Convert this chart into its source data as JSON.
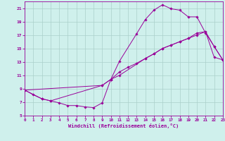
{
  "xlabel": "Windchill (Refroidissement éolien,°C)",
  "background_color": "#cff0ec",
  "grid_color": "#aacfca",
  "line_color": "#990099",
  "xlim": [
    0,
    23
  ],
  "ylim": [
    5,
    22
  ],
  "xticks": [
    0,
    1,
    2,
    3,
    4,
    5,
    6,
    7,
    8,
    9,
    10,
    11,
    12,
    13,
    14,
    15,
    16,
    17,
    18,
    19,
    20,
    21,
    22,
    23
  ],
  "yticks": [
    5,
    7,
    9,
    11,
    13,
    15,
    17,
    19,
    21
  ],
  "series1_x": [
    0,
    1,
    2,
    3,
    4,
    5,
    6,
    7,
    8,
    9,
    10,
    11,
    13,
    14,
    15,
    16,
    17,
    18,
    19,
    20,
    21,
    22,
    23
  ],
  "series1_y": [
    8.8,
    8.1,
    7.5,
    7.2,
    6.9,
    6.5,
    6.5,
    6.3,
    6.2,
    6.9,
    10.4,
    13.1,
    17.2,
    19.3,
    20.7,
    21.5,
    20.9,
    20.7,
    19.7,
    19.7,
    17.3,
    15.3,
    13.3
  ],
  "series2_x": [
    0,
    2,
    3,
    9,
    10,
    11,
    12,
    13,
    14,
    15,
    16,
    17,
    18,
    19,
    20,
    21,
    22,
    23
  ],
  "series2_y": [
    8.8,
    7.5,
    7.2,
    9.5,
    10.4,
    11.5,
    12.2,
    12.8,
    13.5,
    14.2,
    15.0,
    15.5,
    16.0,
    16.5,
    17.0,
    17.5,
    13.7,
    13.3
  ],
  "series3_x": [
    0,
    9,
    10,
    11,
    14,
    15,
    16,
    17,
    18,
    19,
    20,
    21,
    22,
    23
  ],
  "series3_y": [
    8.8,
    9.5,
    10.4,
    11.0,
    13.5,
    14.2,
    15.0,
    15.5,
    16.0,
    16.5,
    17.3,
    17.5,
    15.3,
    13.3
  ]
}
